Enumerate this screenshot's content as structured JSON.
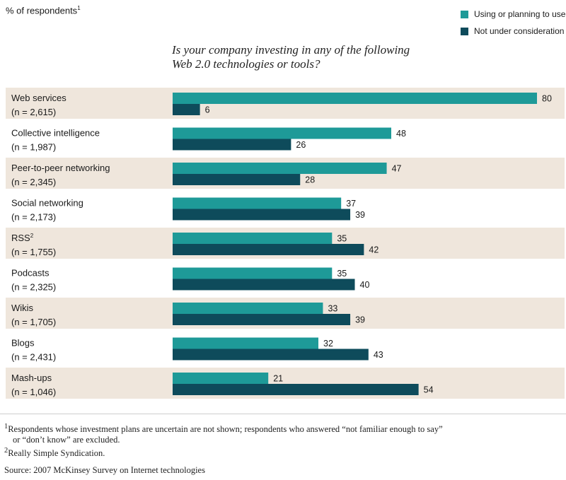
{
  "colors": {
    "using": "#1e9a98",
    "not": "#0e4b5b",
    "band": "#efe6dc"
  },
  "header": {
    "ylabel": "% of respondents",
    "ylabel_sup": "1",
    "title_line1": "Is your company investing in any of the following",
    "title_line2": "Web 2.0 technologies or tools?"
  },
  "legend": [
    {
      "label": "Using or planning to use"
    },
    {
      "label": "Not under consideration"
    }
  ],
  "chart_data": {
    "type": "bar",
    "orientation": "horizontal",
    "categories": [
      {
        "name": "Web services",
        "sup": "",
        "n": "(n = 2,615)"
      },
      {
        "name": "Collective intelligence",
        "sup": "",
        "n": "(n = 1,987)"
      },
      {
        "name": "Peer-to-peer networking",
        "sup": "",
        "n": "(n = 2,345)"
      },
      {
        "name": "Social networking",
        "sup": "",
        "n": "(n = 2,173)"
      },
      {
        "name": "RSS",
        "sup": "2",
        "n": "(n = 1,755)"
      },
      {
        "name": "Podcasts",
        "sup": "",
        "n": "(n = 2,325)"
      },
      {
        "name": "Wikis",
        "sup": "",
        "n": "(n = 1,705)"
      },
      {
        "name": "Blogs",
        "sup": "",
        "n": "(n = 2,431)"
      },
      {
        "name": "Mash-ups",
        "sup": "",
        "n": "(n = 1,046)"
      }
    ],
    "series": [
      {
        "name": "Using or planning to use",
        "values": [
          80,
          48,
          47,
          37,
          35,
          35,
          33,
          32,
          21
        ]
      },
      {
        "name": "Not under consideration",
        "values": [
          6,
          26,
          28,
          39,
          42,
          40,
          39,
          43,
          54
        ]
      }
    ],
    "xlim": [
      0,
      80
    ],
    "grid": false,
    "legend_position": "top-right",
    "alternating_bands": true
  },
  "footnotes": {
    "note1_line1": "Respondents whose investment plans are uncertain are not shown; respondents who answered “not familiar enough to say”",
    "note1_line2": "or “don’t know” are excluded.",
    "note1_marker": "1",
    "note2": "Really Simple Syndication.",
    "note2_marker": "2",
    "source": "Source: 2007 McKinsey Survey on Internet technologies"
  }
}
